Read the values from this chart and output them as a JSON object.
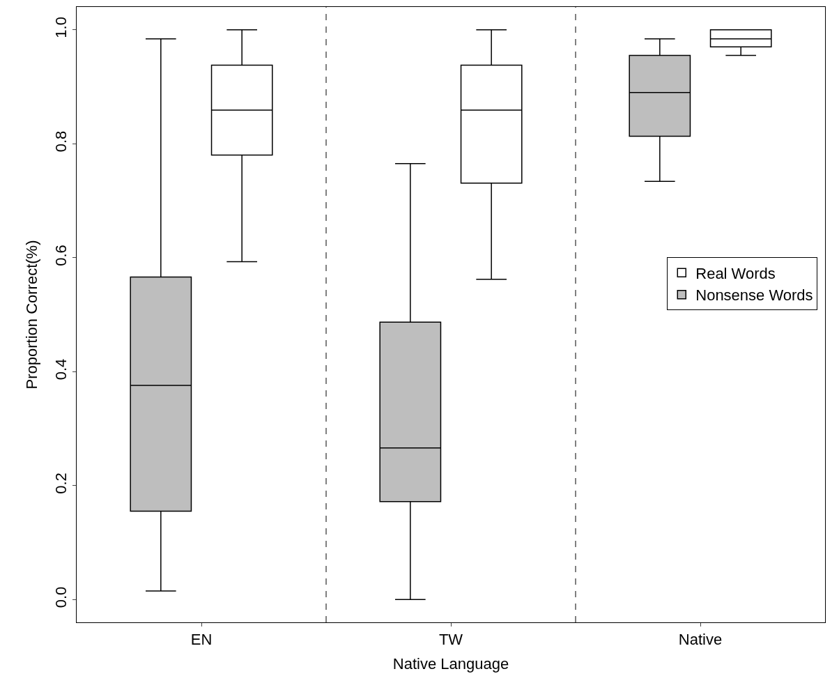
{
  "chart_data": {
    "type": "box",
    "xlabel": "Native Language",
    "ylabel": "Proportion Correct(%)",
    "categories": [
      "EN",
      "TW",
      "Native"
    ],
    "ylim": [
      -0.04,
      1.04
    ],
    "yticks": [
      {
        "value": 0,
        "label": "0.0"
      },
      {
        "value": 0.2,
        "label": "0.2"
      },
      {
        "value": 0.4,
        "label": "0.4"
      },
      {
        "value": 0.6,
        "label": "0.6"
      },
      {
        "value": 0.8,
        "label": "0.8"
      },
      {
        "value": 1,
        "label": "1.0"
      }
    ],
    "series": [
      {
        "name": "Nonsense Words",
        "color": "#bebebe",
        "boxes": [
          {
            "low": 0.015,
            "q1": 0.155,
            "median": 0.376,
            "q3": 0.566,
            "high": 0.984
          },
          {
            "low": 0.0,
            "q1": 0.172,
            "median": 0.266,
            "q3": 0.487,
            "high": 0.765
          },
          {
            "low": 0.734,
            "q1": 0.813,
            "median": 0.89,
            "q3": 0.955,
            "high": 0.984
          }
        ]
      },
      {
        "name": "Real Words",
        "color": "#ffffff",
        "boxes": [
          {
            "low": 0.593,
            "q1": 0.78,
            "median": 0.859,
            "q3": 0.938,
            "high": 1.0
          },
          {
            "low": 0.562,
            "q1": 0.731,
            "median": 0.859,
            "q3": 0.938,
            "high": 1.0
          },
          {
            "low": 0.955,
            "q1": 0.97,
            "median": 0.984,
            "q3": 1.0,
            "high": 1.0
          }
        ]
      }
    ],
    "legend": "right"
  }
}
